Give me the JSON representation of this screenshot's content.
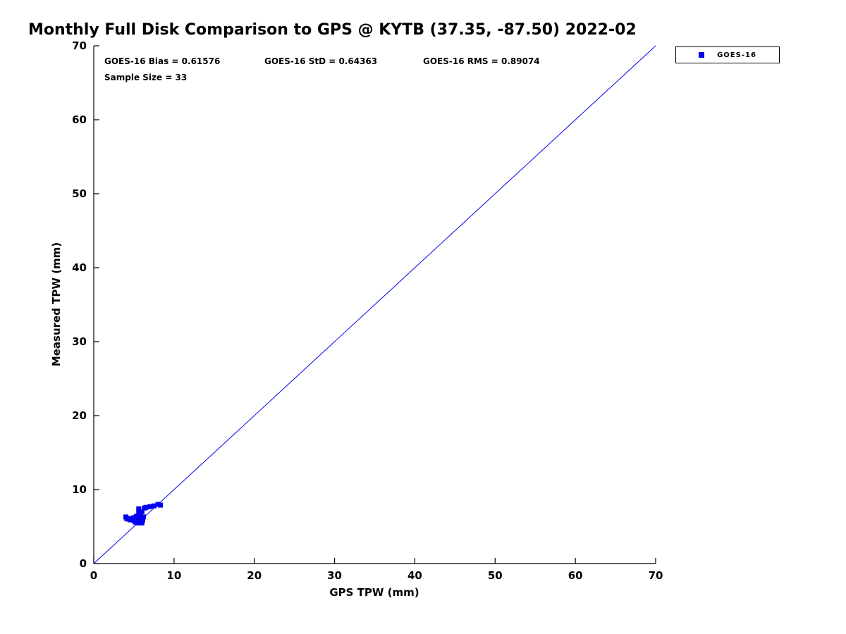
{
  "chart_data": {
    "type": "scatter",
    "title": "Monthly Full Disk Comparison to GPS @ KYTB (37.35, -87.50) 2022-02",
    "xlabel": "GPS TPW (mm)",
    "ylabel": "Measured TPW (mm)",
    "xlim": [
      0,
      70
    ],
    "ylim": [
      0,
      70
    ],
    "xticks": [
      0,
      10,
      20,
      30,
      40,
      50,
      60,
      70
    ],
    "yticks": [
      0,
      10,
      20,
      30,
      40,
      50,
      60,
      70
    ],
    "grid": false,
    "legend_position": "top-right-outside",
    "annotations": {
      "bias": "GOES-16 Bias = 0.61576",
      "std": "GOES-16 StD = 0.64363",
      "rms": "GOES-16 RMS = 0.89074",
      "sample_size": "Sample Size = 33"
    },
    "reference_line": {
      "from": [
        0,
        0
      ],
      "to": [
        70,
        70
      ],
      "color": "#0000ee"
    },
    "series": [
      {
        "name": "GOES-16",
        "marker": "square",
        "color": "#0000ee",
        "points": [
          [
            4.0,
            6.3
          ],
          [
            4.1,
            6.1
          ],
          [
            4.3,
            6.0
          ],
          [
            4.5,
            6.1
          ],
          [
            4.6,
            5.9
          ],
          [
            4.8,
            6.0
          ],
          [
            5.0,
            5.8
          ],
          [
            5.0,
            6.2
          ],
          [
            5.2,
            5.6
          ],
          [
            5.2,
            6.0
          ],
          [
            5.3,
            6.4
          ],
          [
            5.4,
            5.5
          ],
          [
            5.4,
            6.1
          ],
          [
            5.5,
            5.7
          ],
          [
            5.5,
            6.3
          ],
          [
            5.6,
            6.8
          ],
          [
            5.6,
            7.4
          ],
          [
            5.7,
            5.5
          ],
          [
            5.7,
            6.0
          ],
          [
            5.8,
            5.6
          ],
          [
            5.8,
            6.4
          ],
          [
            5.9,
            5.8
          ],
          [
            6.0,
            5.5
          ],
          [
            6.0,
            6.2
          ],
          [
            6.0,
            7.0
          ],
          [
            6.1,
            5.9
          ],
          [
            6.2,
            6.3
          ],
          [
            6.3,
            7.5
          ],
          [
            6.5,
            7.6
          ],
          [
            7.0,
            7.7
          ],
          [
            7.5,
            7.8
          ],
          [
            8.0,
            8.0
          ],
          [
            8.3,
            7.9
          ]
        ]
      }
    ]
  }
}
